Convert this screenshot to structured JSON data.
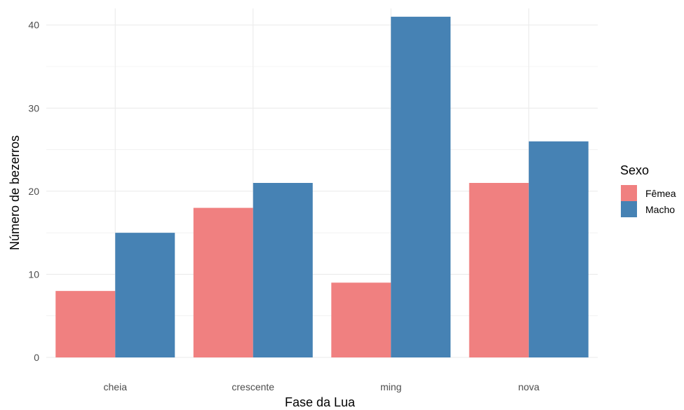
{
  "chart_data": {
    "type": "bar",
    "categories": [
      "cheia",
      "crescente",
      "ming",
      "nova"
    ],
    "series": [
      {
        "name": "Fêmea",
        "values": [
          8,
          18,
          9,
          21
        ],
        "color": "#F08080"
      },
      {
        "name": "Macho",
        "values": [
          15,
          21,
          41,
          26
        ],
        "color": "#4682B4"
      }
    ],
    "xlabel": "Fase da Lua",
    "ylabel": "Número de bezerros",
    "ylim": [
      0,
      42
    ],
    "yticks": [
      0,
      10,
      20,
      30,
      40
    ],
    "y_minor_ticks": [
      5,
      15,
      25,
      35
    ],
    "grid": true,
    "grid_color": "#EBEBEB",
    "legend": {
      "title": "Sexo",
      "position": "right"
    }
  }
}
